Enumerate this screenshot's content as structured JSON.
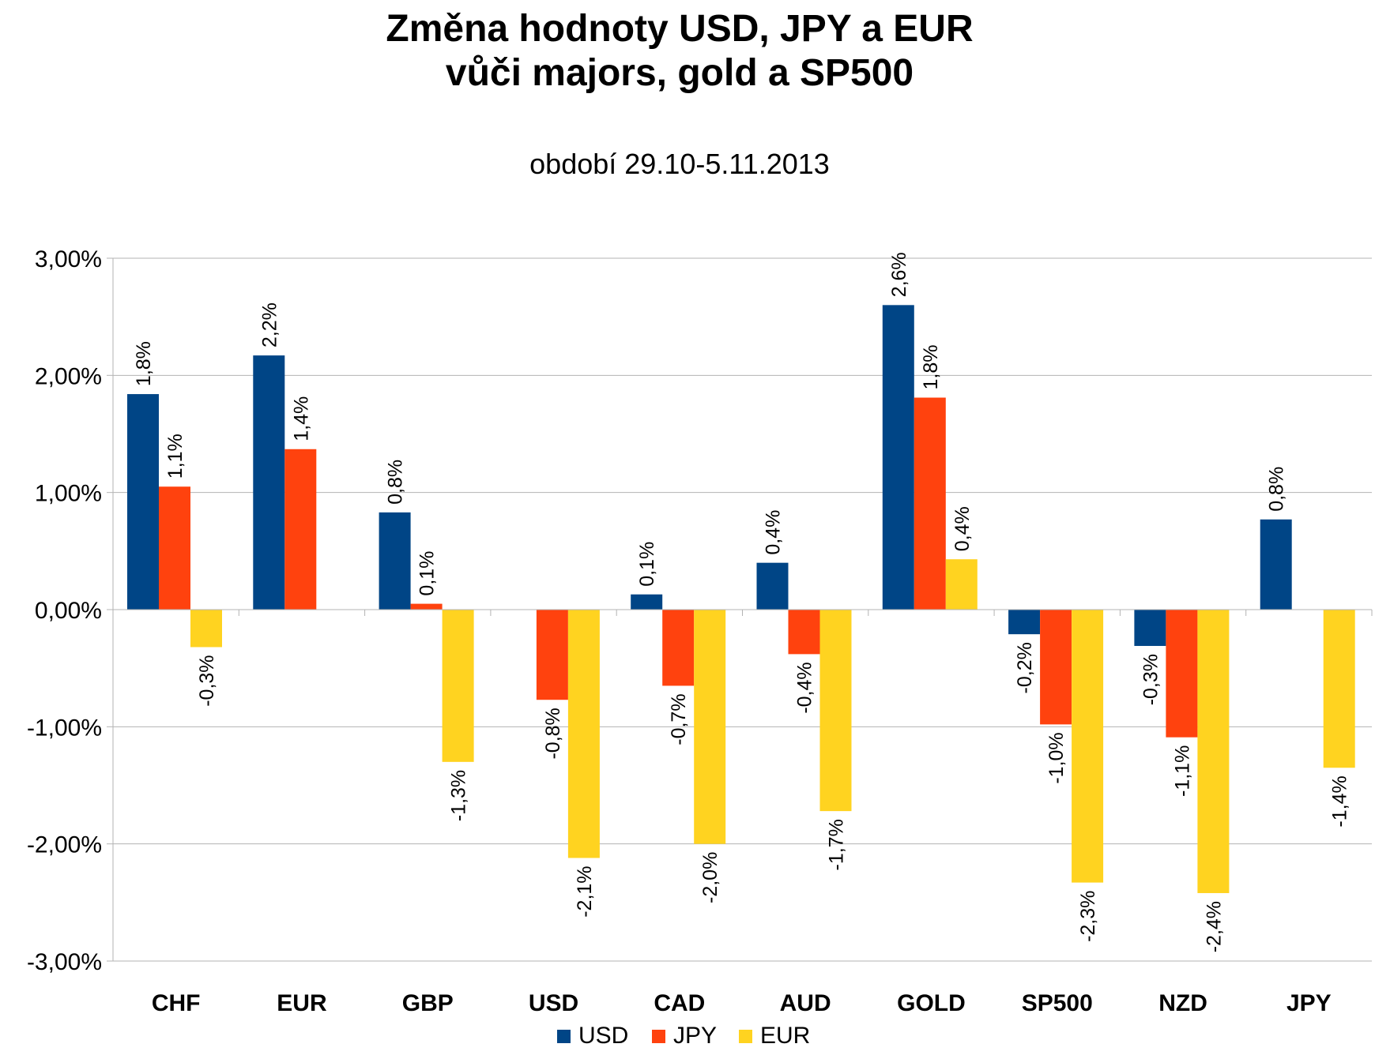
{
  "chart_data": {
    "type": "bar",
    "title_lines": [
      "Změna hodnoty USD, JPY a EUR",
      "vůči majors, gold a SP500"
    ],
    "subtitle": "období 29.10-5.11.2013",
    "xlabel": "",
    "ylabel": "",
    "ylim": [
      -3,
      3
    ],
    "y_ticks": [
      3,
      2,
      1,
      0,
      -1,
      -2,
      -3
    ],
    "y_tick_labels": [
      "3,00%",
      "2,00%",
      "1,00%",
      "0,00%",
      "-1,00%",
      "-2,00%",
      "-3,00%"
    ],
    "grid": true,
    "legend_position": "bottom",
    "categories": [
      "CHF",
      "EUR",
      "GBP",
      "USD",
      "CAD",
      "AUD",
      "GOLD",
      "SP500",
      "NZD",
      "JPY"
    ],
    "series": [
      {
        "name": "USD",
        "color": "#004586",
        "values": [
          1.84,
          2.17,
          0.83,
          null,
          0.13,
          0.4,
          2.6,
          -0.21,
          -0.31,
          0.77
        ],
        "labels": [
          "1,8%",
          "2,2%",
          "0,8%",
          null,
          "0,1%",
          "0,4%",
          "2,6%",
          "-0,2%",
          "-0,3%",
          "0,8%"
        ]
      },
      {
        "name": "JPY",
        "color": "#ff420e",
        "values": [
          1.05,
          1.37,
          0.05,
          -0.77,
          -0.65,
          -0.38,
          1.81,
          -0.98,
          -1.09,
          null
        ],
        "labels": [
          "1,1%",
          "1,4%",
          "0,1%",
          "-0,8%",
          "-0,7%",
          "-0,4%",
          "1,8%",
          "-1,0%",
          "-1,1%",
          null
        ]
      },
      {
        "name": "EUR",
        "color": "#ffd320",
        "values": [
          -0.32,
          null,
          -1.3,
          -2.12,
          -2.0,
          -1.72,
          0.43,
          -2.33,
          -2.42,
          -1.35
        ],
        "labels": [
          "-0,3%",
          null,
          "-1,3%",
          "-2,1%",
          "-2,0%",
          "-1,7%",
          "0,4%",
          "-2,3%",
          "-2,4%",
          "-1,4%"
        ]
      }
    ]
  }
}
